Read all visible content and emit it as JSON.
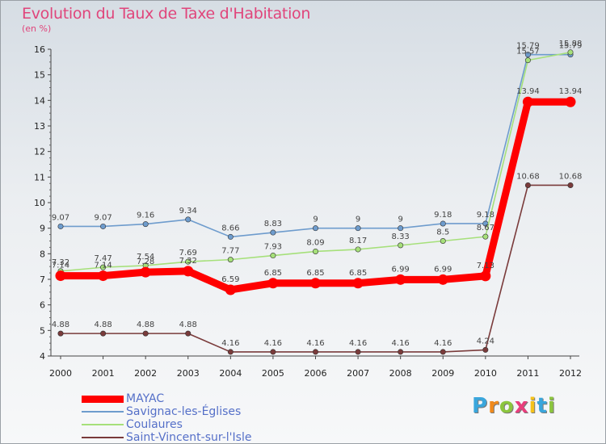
{
  "chart_data": {
    "type": "line",
    "title": "Evolution du Taux de Taxe d'Habitation",
    "subtitle": "(en %)",
    "categories": [
      "2000",
      "2001",
      "2002",
      "2003",
      "2004",
      "2005",
      "2006",
      "2007",
      "2008",
      "2009",
      "2010",
      "2011",
      "2012"
    ],
    "ylim": [
      4,
      16
    ],
    "yticks": [
      "4",
      "5",
      "6",
      "7",
      "8",
      "9",
      "10",
      "11",
      "12",
      "13",
      "14",
      "15",
      "16"
    ],
    "grid": false,
    "legend_position": "bottom-left",
    "series": [
      {
        "name": "MAYAC",
        "color": "#ff0000",
        "values": [
          7.14,
          7.14,
          7.28,
          7.32,
          6.59,
          6.85,
          6.85,
          6.85,
          6.99,
          6.99,
          7.13,
          13.94,
          13.94
        ],
        "labels": [
          "7.14",
          "7.14",
          "7.28",
          "7.32",
          "6.59",
          "6.85",
          "6.85",
          "6.85",
          "6.99",
          "6.99",
          "7.13",
          "13.94",
          "13.94"
        ]
      },
      {
        "name": "Savignac-les-Églises",
        "color": "#6e9ccd",
        "values": [
          9.07,
          9.07,
          9.16,
          9.34,
          8.66,
          8.83,
          9.0,
          9.0,
          9.0,
          9.18,
          9.18,
          15.79,
          15.79
        ],
        "labels": [
          "9.07",
          "9.07",
          "9.16",
          "9.34",
          "8.66",
          "8.83",
          "9",
          "9",
          "9",
          "9.18",
          "9.18",
          "15.79",
          "15.79"
        ]
      },
      {
        "name": "Coulaures",
        "color": "#a6e07a",
        "values": [
          7.32,
          7.47,
          7.54,
          7.69,
          7.77,
          7.93,
          8.09,
          8.17,
          8.33,
          8.5,
          8.67,
          15.57,
          15.88
        ],
        "labels": [
          "7.32",
          "7.47",
          "7.54",
          "7.69",
          "7.77",
          "7.93",
          "8.09",
          "8.17",
          "8.33",
          "8.5",
          "8.67",
          "15.57",
          "15.88"
        ]
      },
      {
        "name": "Saint-Vincent-sur-l'Isle",
        "color": "#7a3b3b",
        "values": [
          4.88,
          4.88,
          4.88,
          4.88,
          4.16,
          4.16,
          4.16,
          4.16,
          4.16,
          4.16,
          4.24,
          10.68,
          10.68
        ],
        "labels": [
          "4.88",
          "4.88",
          "4.88",
          "4.88",
          "4.16",
          "4.16",
          "4.16",
          "4.16",
          "4.16",
          "4.16",
          "4.24",
          "10.68",
          "10.68"
        ]
      }
    ]
  },
  "brand": {
    "letters": [
      "P",
      "r",
      "o",
      "x",
      "i",
      "t",
      "i"
    ],
    "colors": [
      "#3aa6dc",
      "#f08a1c",
      "#8cc63e",
      "#e83e7c",
      "#f5c21b",
      "#3aa6dc",
      "#8cc63e"
    ]
  }
}
